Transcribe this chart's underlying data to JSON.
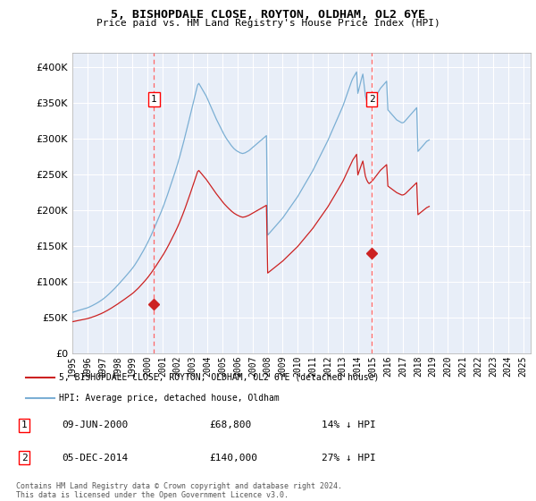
{
  "title": "5, BISHOPDALE CLOSE, ROYTON, OLDHAM, OL2 6YE",
  "subtitle": "Price paid vs. HM Land Registry's House Price Index (HPI)",
  "legend_label_red": "5, BISHOPDALE CLOSE, ROYTON, OLDHAM, OL2 6YE (detached house)",
  "legend_label_blue": "HPI: Average price, detached house, Oldham",
  "annotation1_date": "09-JUN-2000",
  "annotation1_price": "£68,800",
  "annotation1_hpi": "14% ↓ HPI",
  "annotation1_year": 2000.44,
  "annotation1_value": 68800,
  "annotation2_date": "05-DEC-2014",
  "annotation2_price": "£140,000",
  "annotation2_hpi": "27% ↓ HPI",
  "annotation2_year": 2014.92,
  "annotation2_value": 140000,
  "ylim": [
    0,
    420000
  ],
  "xlim_start": 1995.0,
  "xlim_end": 2025.5,
  "background_color": "#E8EEF8",
  "grid_color": "#FFFFFF",
  "copyright_text": "Contains HM Land Registry data © Crown copyright and database right 2024.\nThis data is licensed under the Open Government Licence v3.0.",
  "yticks": [
    0,
    50000,
    100000,
    150000,
    200000,
    250000,
    300000,
    350000,
    400000
  ],
  "ytick_labels": [
    "£0",
    "£50K",
    "£100K",
    "£150K",
    "£200K",
    "£250K",
    "£300K",
    "£350K",
    "£400K"
  ],
  "xticks": [
    1995,
    1996,
    1997,
    1998,
    1999,
    2000,
    2001,
    2002,
    2003,
    2004,
    2005,
    2006,
    2007,
    2008,
    2009,
    2010,
    2011,
    2012,
    2013,
    2014,
    2015,
    2016,
    2017,
    2018,
    2019,
    2020,
    2021,
    2022,
    2023,
    2024,
    2025
  ],
  "hpi_base_values": [
    57000,
    57500,
    58100,
    58700,
    59200,
    59800,
    60300,
    60900,
    61400,
    61900,
    62400,
    62900,
    63400,
    64100,
    64900,
    65700,
    66600,
    67500,
    68400,
    69400,
    70400,
    71500,
    72600,
    73800,
    75000,
    76300,
    77700,
    79200,
    80700,
    82300,
    83900,
    85600,
    87300,
    89100,
    90800,
    92700,
    94400,
    96400,
    98300,
    100300,
    102200,
    104300,
    106300,
    108400,
    110400,
    112500,
    114500,
    116600,
    118800,
    121200,
    123700,
    126400,
    129200,
    132000,
    135000,
    138000,
    141100,
    144200,
    147400,
    150600,
    154000,
    157600,
    161300,
    165100,
    169000,
    173000,
    177100,
    181200,
    185400,
    189500,
    193700,
    197900,
    202200,
    206800,
    211600,
    216500,
    221500,
    226700,
    231900,
    237200,
    242500,
    247800,
    253100,
    258500,
    264200,
    270200,
    276400,
    282800,
    289400,
    296100,
    303000,
    310000,
    317100,
    324200,
    331400,
    338700,
    345900,
    353200,
    360400,
    367500,
    374600,
    377000,
    374000,
    371000,
    368000,
    365000,
    362000,
    359000,
    355000,
    351000,
    347000,
    343000,
    339000,
    335000,
    331000,
    327000,
    323500,
    320000,
    316500,
    313000,
    309500,
    306000,
    303000,
    300000,
    297500,
    295000,
    292500,
    290000,
    288000,
    286000,
    284500,
    283000,
    282000,
    281000,
    280000,
    279500,
    279000,
    279500,
    280000,
    281000,
    282000,
    283000,
    284500,
    286000,
    287500,
    289000,
    290500,
    292000,
    293500,
    295000,
    296500,
    298000,
    299500,
    301000,
    302500,
    304000,
    165000,
    167000,
    169000,
    171000,
    173000,
    175000,
    177000,
    179000,
    181000,
    183000,
    185000,
    187000,
    189000,
    191500,
    194000,
    196500,
    199000,
    201500,
    204000,
    206500,
    209000,
    211500,
    214000,
    216500,
    219000,
    222000,
    225000,
    228000,
    231000,
    234000,
    237000,
    240000,
    243000,
    246000,
    249000,
    252000,
    255000,
    258500,
    262000,
    265500,
    269000,
    272500,
    276000,
    279500,
    283000,
    286500,
    290000,
    293500,
    297000,
    301000,
    305000,
    309000,
    313000,
    317000,
    321000,
    325000,
    329000,
    333000,
    337000,
    341000,
    345000,
    350000,
    355000,
    360000,
    365000,
    370000,
    375000,
    380000,
    384000,
    387000,
    390000,
    393000,
    363000,
    370000,
    377000,
    384000,
    390000,
    375000,
    360000,
    353000,
    348000,
    345000,
    347000,
    349000,
    352000,
    355000,
    358000,
    361000,
    364000,
    367000,
    370000,
    372000,
    374000,
    376000,
    378000,
    380000,
    340000,
    338000,
    336000,
    334000,
    332000,
    330000,
    328000,
    326000,
    325000,
    324000,
    323000,
    322000,
    322000,
    323000,
    325000,
    327000,
    329000,
    331000,
    333000,
    335000,
    337000,
    339000,
    341000,
    343000,
    282000,
    284000,
    286000,
    288000,
    290000,
    292000,
    294000,
    296000,
    297000,
    298000
  ],
  "red_base_values": [
    44000,
    44300,
    44700,
    45100,
    45400,
    45800,
    46100,
    46500,
    46900,
    47200,
    47600,
    47900,
    48300,
    48800,
    49400,
    49900,
    50500,
    51100,
    51800,
    52400,
    53100,
    53800,
    54500,
    55300,
    56100,
    57000,
    57900,
    58900,
    59800,
    60800,
    61900,
    62900,
    64000,
    65100,
    66200,
    67400,
    68500,
    69700,
    70900,
    72100,
    73300,
    74600,
    75800,
    77100,
    78300,
    79600,
    80800,
    82100,
    83500,
    84900,
    86500,
    88100,
    89800,
    91500,
    93400,
    95300,
    97200,
    99200,
    101200,
    103200,
    105300,
    107600,
    109900,
    112300,
    114800,
    117300,
    119900,
    122500,
    125200,
    127800,
    130500,
    133200,
    136000,
    138900,
    141900,
    145000,
    148200,
    151500,
    154900,
    158300,
    161800,
    165300,
    168800,
    172400,
    176200,
    180200,
    184400,
    188700,
    193100,
    197700,
    202400,
    207300,
    212200,
    217200,
    222300,
    227400,
    232600,
    237900,
    243200,
    248400,
    253600,
    255300,
    253200,
    251100,
    249000,
    246900,
    244800,
    242700,
    240200,
    237700,
    235200,
    232700,
    230200,
    227700,
    225200,
    222700,
    220500,
    218200,
    215900,
    213700,
    211400,
    209200,
    207300,
    205400,
    203700,
    202000,
    200300,
    198600,
    197200,
    195800,
    194700,
    193600,
    192700,
    191800,
    191000,
    190500,
    190000,
    190300,
    190600,
    191300,
    192000,
    192700,
    193700,
    194700,
    195700,
    196700,
    197700,
    198700,
    199700,
    200700,
    201700,
    202700,
    203700,
    204700,
    205700,
    206700,
    112000,
    113400,
    114800,
    116200,
    117600,
    119000,
    120400,
    121800,
    123200,
    124600,
    126000,
    127400,
    128800,
    130500,
    132200,
    133900,
    135600,
    137300,
    139000,
    140700,
    142400,
    144100,
    145800,
    147500,
    149200,
    151300,
    153400,
    155500,
    157600,
    159700,
    161800,
    163900,
    166000,
    168100,
    170200,
    172300,
    174400,
    176900,
    179400,
    181900,
    184400,
    186900,
    189400,
    191900,
    194400,
    196900,
    199400,
    201900,
    204400,
    207300,
    210200,
    213100,
    216000,
    219000,
    222000,
    225000,
    228000,
    231000,
    234000,
    237000,
    240000,
    243800,
    247600,
    251400,
    255200,
    259000,
    262800,
    266600,
    270100,
    272700,
    275300,
    277900,
    249000,
    254000,
    259000,
    264000,
    268500,
    258000,
    247500,
    242500,
    239000,
    237000,
    238400,
    239800,
    241700,
    244000,
    246300,
    248600,
    250900,
    253200,
    255500,
    257100,
    258700,
    260300,
    261900,
    263500,
    233500,
    232200,
    230900,
    229600,
    228300,
    227000,
    225700,
    224400,
    223500,
    222700,
    221900,
    221100,
    221100,
    221800,
    223000,
    224700,
    226400,
    228100,
    229800,
    231500,
    233200,
    234900,
    236600,
    238300,
    193500,
    195000,
    196400,
    197800,
    199200,
    200600,
    202000,
    203400,
    204300,
    205100
  ]
}
